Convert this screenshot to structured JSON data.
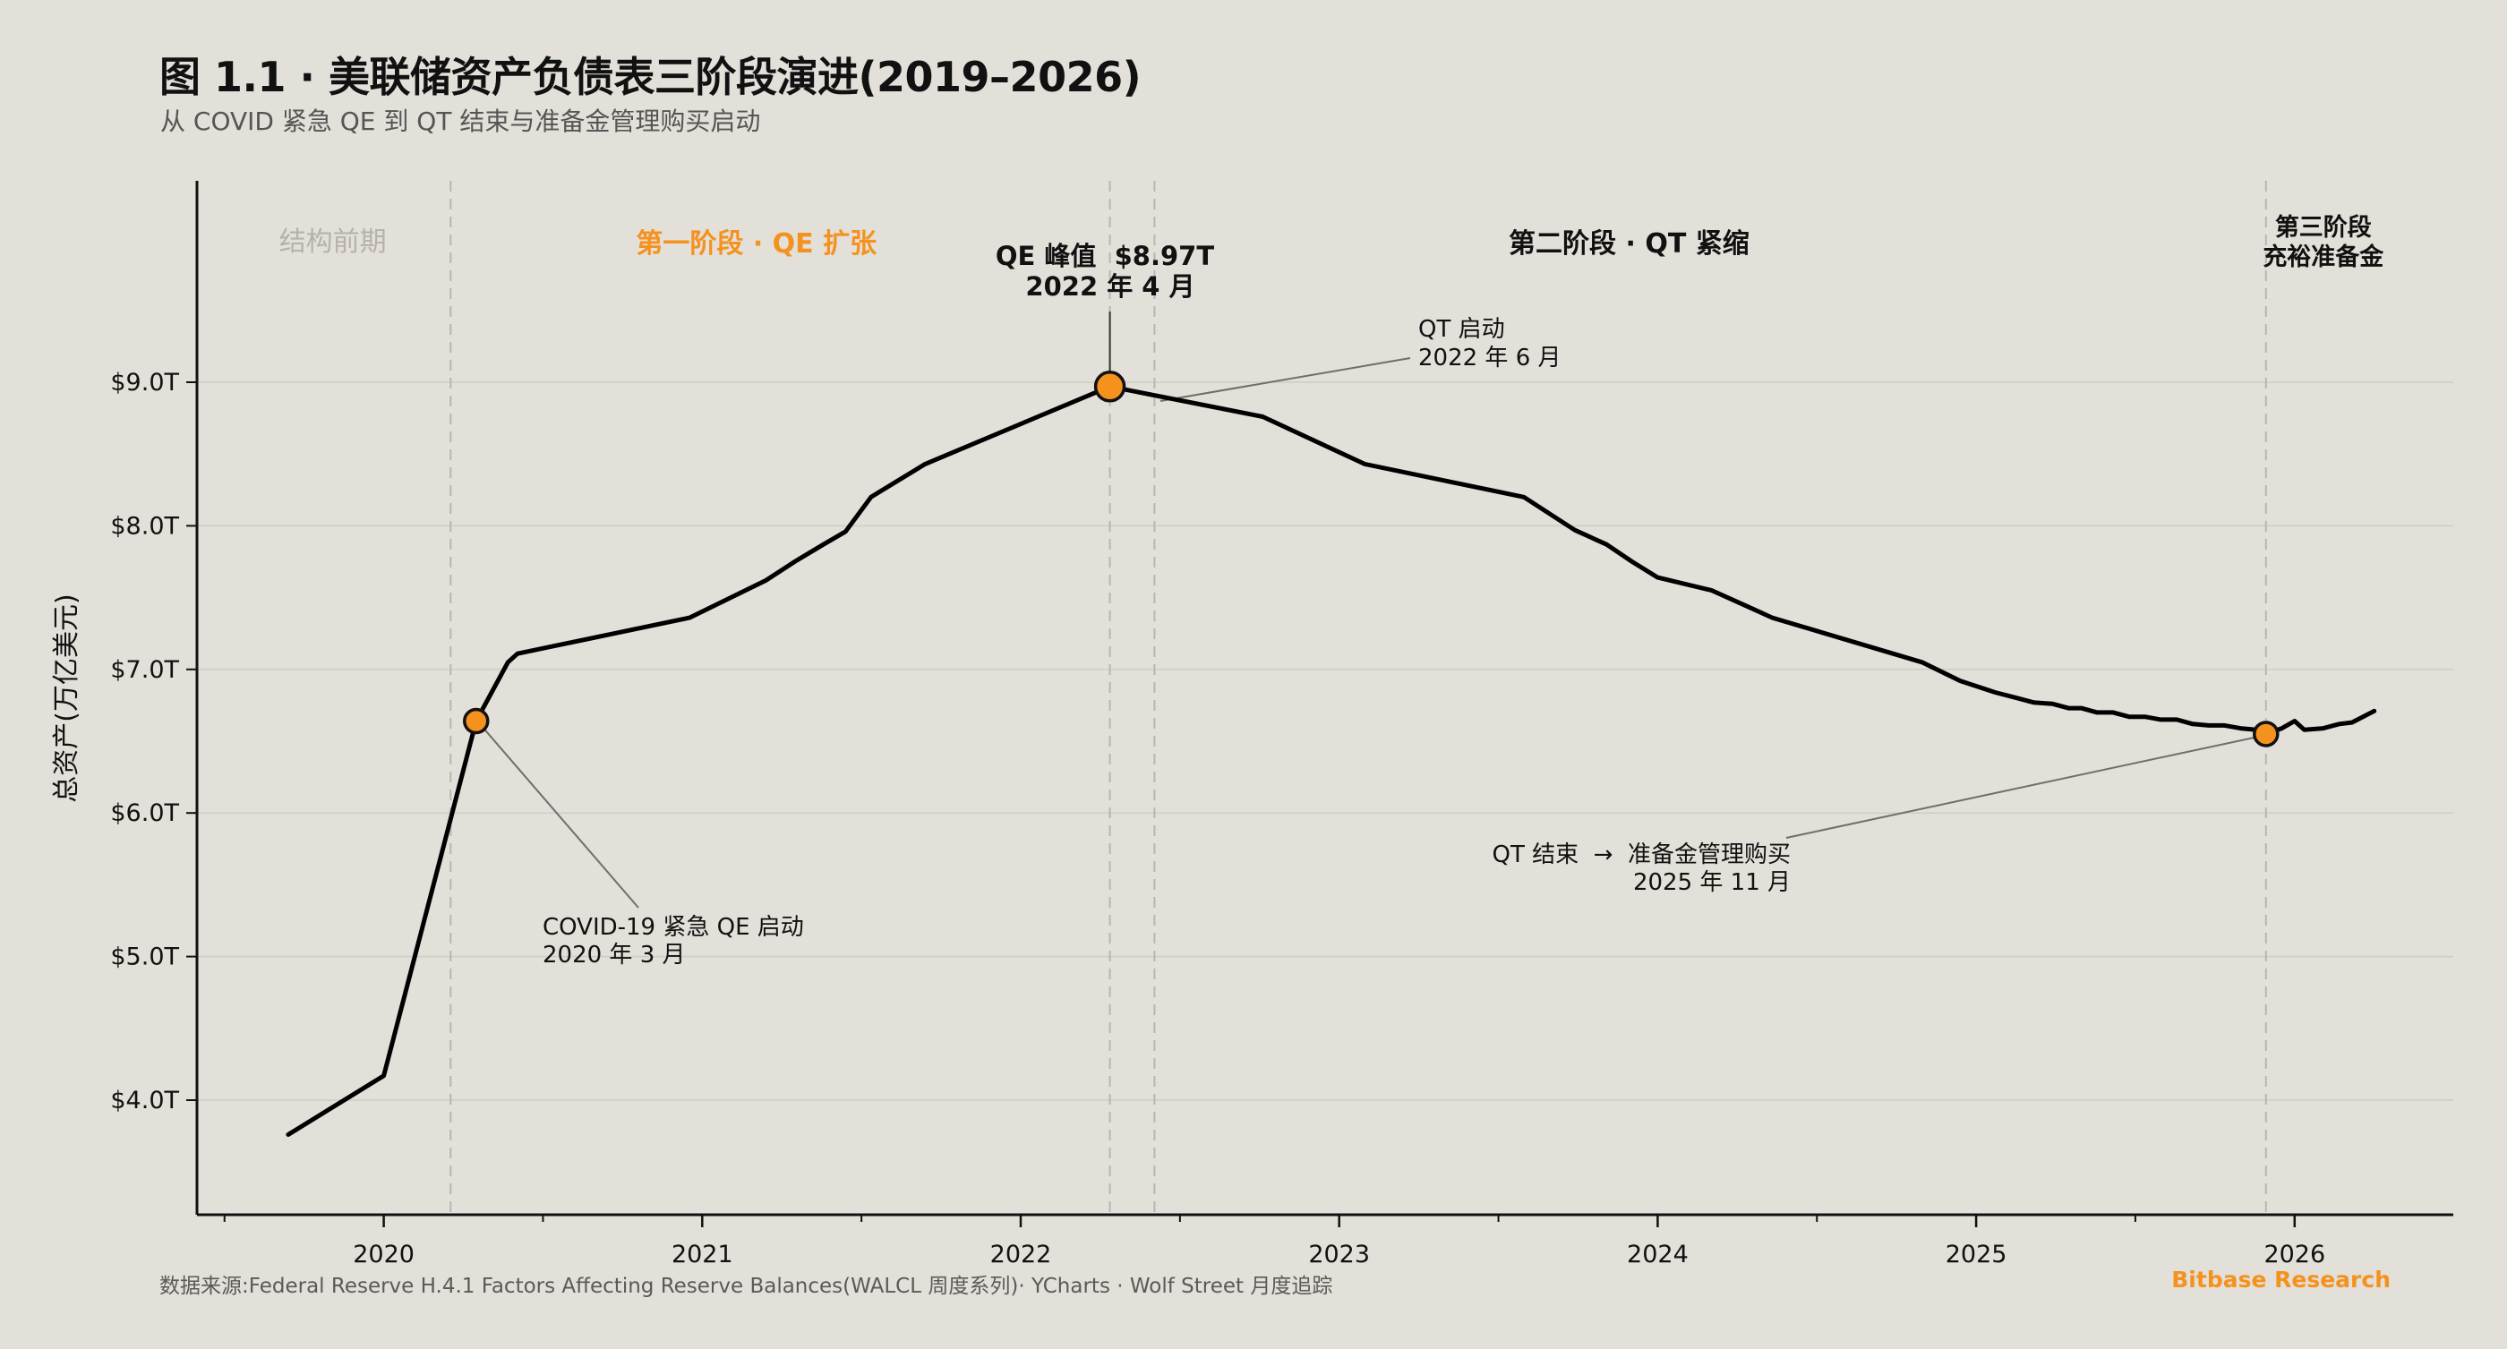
{
  "header": {
    "title": "图 1.1 · 美联储资产负债表三阶段演进(2019–2026)",
    "subtitle": "从 COVID 紧急 QE 到 QT 结束与准备金管理购买启动"
  },
  "footer": {
    "source": "数据来源:Federal Reserve H.4.1 Factors Affecting Reserve Balances(WALCL 周度系列)· YCharts · Wolf Street 月度追踪",
    "brand": "Bitbase Research"
  },
  "colors": {
    "background": "#e3dfd9",
    "line": "#000000",
    "accent": "#f5921e",
    "phase_pre": "#b5b1ab",
    "grid": "#d0ccc6",
    "divider": "#b9b5b0",
    "leader": "#6e6e6e"
  },
  "chart_data": {
    "type": "line",
    "title": "图 1.1 · 美联储资产负债表三阶段演进(2019–2026)",
    "xlabel": "",
    "ylabel": "总资产(万亿美元)",
    "xlim": [
      2019.45,
      2026.5
    ],
    "ylim": [
      3.2,
      10.4
    ],
    "grid": true,
    "x_ticks": [
      {
        "value": 2020,
        "label": "2020"
      },
      {
        "value": 2021,
        "label": "2021"
      },
      {
        "value": 2022,
        "label": "2022"
      },
      {
        "value": 2023,
        "label": "2023"
      },
      {
        "value": 2024,
        "label": "2024"
      },
      {
        "value": 2025,
        "label": "2025"
      },
      {
        "value": 2026,
        "label": "2026"
      }
    ],
    "x_minor_ticks": [
      2019.5,
      2020.5,
      2021.5,
      2022.5,
      2023.5,
      2024.5,
      2025.5,
      2026.5
    ],
    "y_ticks": [
      {
        "value": 4.0,
        "label": "$4.0T"
      },
      {
        "value": 5.0,
        "label": "$5.0T"
      },
      {
        "value": 6.0,
        "label": "$6.0T"
      },
      {
        "value": 7.0,
        "label": "$7.0T"
      },
      {
        "value": 8.0,
        "label": "$8.0T"
      },
      {
        "value": 9.0,
        "label": "$9.0T"
      }
    ],
    "series": [
      {
        "name": "总资产",
        "x": [
          2019.7,
          2020.0,
          2020.29,
          2020.39,
          2020.42,
          2020.96,
          2021.2,
          2021.29,
          2021.38,
          2021.45,
          2021.53,
          2021.7,
          2022.28,
          2022.76,
          2023.08,
          2023.58,
          2023.74,
          2023.84,
          2023.92,
          2024.0,
          2024.17,
          2024.28,
          2024.36,
          2024.83,
          2024.95,
          2025.06,
          2025.13,
          2025.18,
          2025.24,
          2025.29,
          2025.33,
          2025.38,
          2025.43,
          2025.48,
          2025.53,
          2025.58,
          2025.63,
          2025.68,
          2025.73,
          2025.78,
          2025.83,
          2025.88,
          2025.91,
          2025.96,
          2026.0,
          2026.03,
          2026.09,
          2026.14,
          2026.18,
          2026.25
        ],
        "values": [
          3.76,
          4.17,
          6.64,
          7.05,
          7.11,
          7.36,
          7.62,
          7.75,
          7.87,
          7.96,
          8.2,
          8.43,
          8.97,
          8.76,
          8.43,
          8.2,
          7.97,
          7.87,
          7.75,
          7.64,
          7.55,
          7.44,
          7.36,
          7.05,
          6.92,
          6.84,
          6.8,
          6.77,
          6.76,
          6.73,
          6.73,
          6.7,
          6.7,
          6.67,
          6.67,
          6.65,
          6.65,
          6.62,
          6.61,
          6.61,
          6.59,
          6.58,
          6.55,
          6.59,
          6.64,
          6.58,
          6.59,
          6.62,
          6.63,
          6.71
        ]
      }
    ],
    "phase_dividers": [
      2020.21,
      2022.28,
      2022.42,
      2025.91
    ],
    "phases": [
      {
        "label": "结构前期",
        "x_center": 2019.84,
        "style": "muted"
      },
      {
        "label": "第一阶段 · QE 扩张",
        "x_center": 2021.17,
        "style": "accent"
      },
      {
        "label": "第二阶段 · QT 紧缩",
        "x_center": 2023.91,
        "style": "dark"
      },
      {
        "label_line1": "第三阶段",
        "label_line2": "充裕准备金",
        "x_center": 2026.09,
        "style": "dark"
      }
    ],
    "annotations": [
      {
        "id": "covid",
        "point": {
          "x": 2020.29,
          "y": 6.64
        },
        "marker": true,
        "line1": "COVID-19 紧急 QE 启动",
        "line2": "2020 年 3 月"
      },
      {
        "id": "peak",
        "point": {
          "x": 2022.28,
          "y": 8.97
        },
        "marker": true,
        "line1": "QE 峰值  $8.97T",
        "line2": "2022 年 4 月"
      },
      {
        "id": "qt-start",
        "point": {
          "x": 2022.43,
          "y": 8.85
        },
        "marker": false,
        "line1": "QT 启动",
        "line2": "2022 年 6 月"
      },
      {
        "id": "qt-end",
        "point": {
          "x": 2025.91,
          "y": 6.55
        },
        "marker": true,
        "line1": "QT 结束  →  准备金管理购买",
        "line2": "2025 年 11 月"
      }
    ]
  }
}
